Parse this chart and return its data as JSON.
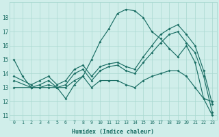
{
  "bg_color": "#d0eeea",
  "grid_color": "#a8d8d0",
  "line_color": "#1a6e64",
  "xlabel": "Humidex (Indice chaleur)",
  "xlim": [
    -0.5,
    23.5
  ],
  "ylim": [
    10.7,
    19.1
  ],
  "xticks": [
    0,
    1,
    2,
    3,
    4,
    5,
    6,
    7,
    8,
    9,
    10,
    11,
    12,
    13,
    14,
    15,
    16,
    17,
    18,
    19,
    20,
    21,
    22,
    23
  ],
  "yticks": [
    11,
    12,
    13,
    14,
    15,
    16,
    17,
    18
  ],
  "curve_main_x": [
    0,
    1,
    2,
    3,
    4,
    5,
    6,
    7,
    8,
    9,
    10,
    11,
    12,
    13,
    14,
    15,
    16,
    17,
    18,
    19,
    20,
    21,
    22,
    23
  ],
  "curve_main_y": [
    15.0,
    13.8,
    13.0,
    13.0,
    13.0,
    13.0,
    12.2,
    13.2,
    13.8,
    15.0,
    16.3,
    17.2,
    18.3,
    18.6,
    18.5,
    18.0,
    17.0,
    16.5,
    15.8,
    15.2,
    16.0,
    14.8,
    12.2,
    12.0
  ],
  "curve_up1_x": [
    0,
    2,
    3,
    4,
    5,
    6,
    7,
    8,
    9,
    10,
    11,
    12,
    13,
    14,
    15,
    16,
    17,
    18,
    19,
    20,
    21,
    22,
    23
  ],
  "curve_up1_y": [
    13.8,
    13.2,
    13.5,
    13.8,
    13.2,
    13.5,
    14.3,
    14.6,
    13.8,
    14.5,
    14.7,
    14.8,
    14.5,
    14.3,
    15.2,
    16.0,
    16.8,
    17.2,
    17.5,
    16.8,
    16.0,
    14.2,
    11.8
  ],
  "curve_up2_x": [
    0,
    2,
    3,
    4,
    5,
    6,
    7,
    8,
    9,
    10,
    11,
    12,
    13,
    14,
    15,
    16,
    17,
    18,
    19,
    20,
    21,
    22,
    23
  ],
  "curve_up2_y": [
    13.5,
    13.0,
    13.2,
    13.5,
    13.0,
    13.2,
    14.0,
    14.3,
    13.5,
    14.2,
    14.5,
    14.6,
    14.2,
    14.0,
    14.8,
    15.5,
    16.2,
    16.8,
    17.0,
    16.2,
    15.5,
    13.8,
    11.2
  ],
  "curve_down_x": [
    0,
    2,
    3,
    4,
    5,
    6,
    7,
    8,
    9,
    10,
    11,
    12,
    13,
    14,
    15,
    16,
    17,
    18,
    19,
    20,
    21,
    22,
    23
  ],
  "curve_down_y": [
    13.0,
    13.0,
    13.0,
    13.2,
    13.0,
    13.0,
    13.5,
    13.8,
    13.0,
    13.5,
    13.5,
    13.5,
    13.2,
    13.0,
    13.5,
    13.8,
    14.0,
    14.2,
    14.2,
    13.8,
    13.0,
    12.2,
    11.0
  ]
}
